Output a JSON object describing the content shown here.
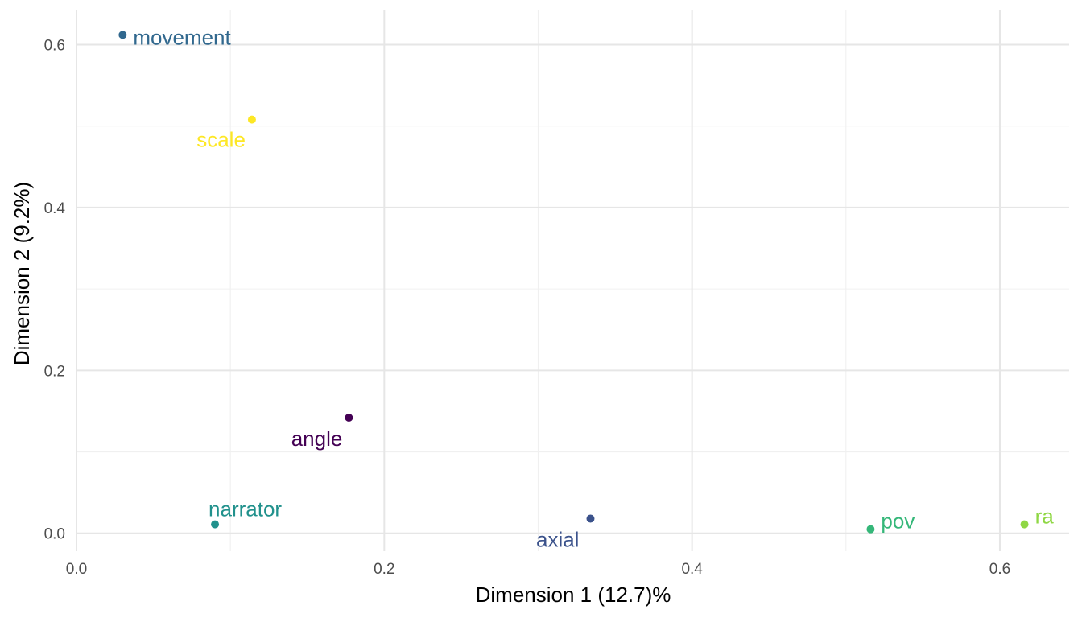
{
  "chart_data": {
    "type": "scatter",
    "xlabel": "Dimension 1 (12.7)%",
    "ylabel": "Dimension 2 (9.2%)",
    "xlim": [
      0.0,
      0.645
    ],
    "ylim": [
      -0.022,
      0.642
    ],
    "x_ticks": [
      0.0,
      0.2,
      0.4,
      0.6
    ],
    "x_tick_labels": [
      "0.0",
      "0.2",
      "0.4",
      "0.6"
    ],
    "y_ticks": [
      0.0,
      0.2,
      0.4,
      0.6
    ],
    "y_tick_labels": [
      "0.0",
      "0.2",
      "0.4",
      "0.6"
    ],
    "grid": true,
    "legend": "none",
    "points": [
      {
        "label": "movement",
        "x": 0.03,
        "y": 0.612,
        "color": "#31688e"
      },
      {
        "label": "scale",
        "x": 0.114,
        "y": 0.508,
        "color": "#fde725"
      },
      {
        "label": "angle",
        "x": 0.177,
        "y": 0.142,
        "color": "#440154"
      },
      {
        "label": "narrator",
        "x": 0.09,
        "y": 0.011,
        "color": "#21918c"
      },
      {
        "label": "axial",
        "x": 0.334,
        "y": 0.018,
        "color": "#3b528b"
      },
      {
        "label": "pov",
        "x": 0.516,
        "y": 0.005,
        "color": "#35b779"
      },
      {
        "label": "ra",
        "x": 0.616,
        "y": 0.011,
        "color": "#8fd744"
      }
    ]
  }
}
